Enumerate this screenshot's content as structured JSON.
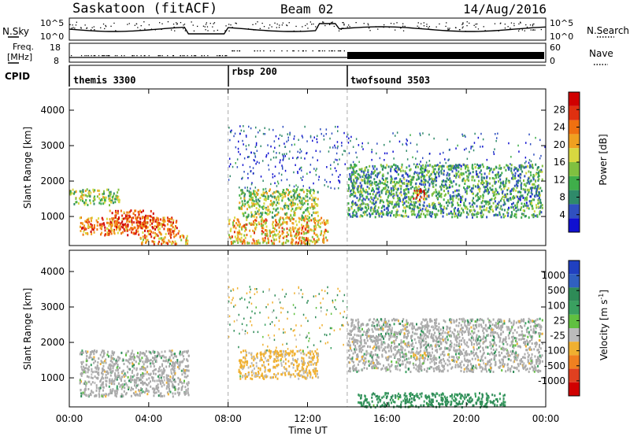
{
  "header": {
    "station": "Saskatoon (fitACF)",
    "beam": "Beam 02",
    "date": "14/Aug/2016"
  },
  "noise_panel": {
    "left_label": "N.Sky",
    "left_ticks": [
      "10^5",
      "10^0"
    ],
    "right_label": "N.Search",
    "right_ticks": [
      "10^5",
      "10^0"
    ]
  },
  "freq_panel": {
    "left_label_line1": "Freq.",
    "left_label_line2": "[MHz]",
    "left_ticks": [
      "18",
      "8"
    ],
    "right_label": "Nave",
    "right_ticks": [
      "60",
      "0"
    ]
  },
  "cpid_panel": {
    "label": "CPID",
    "programs": [
      {
        "name": "themis 3300",
        "start": 0
      },
      {
        "name": "rbsp 200",
        "start": 8
      },
      {
        "name": "twofsound 3503",
        "start": 14
      }
    ]
  },
  "power_panel": {
    "ylabel": "Slant Range [km]",
    "yticks": [
      "1000",
      "2000",
      "3000",
      "4000"
    ],
    "colorbar_label": "Power [dB]",
    "colorbar_ticks": [
      "4",
      "8",
      "12",
      "16",
      "20",
      "24",
      "28"
    ],
    "colors": [
      "#1010d0",
      "#3050c0",
      "#2f8a6a",
      "#3fae4a",
      "#80c040",
      "#d8d840",
      "#f0a020",
      "#f07010",
      "#e03010",
      "#d00000"
    ]
  },
  "velocity_panel": {
    "ylabel": "Slant Range [km]",
    "yticks": [
      "1000",
      "2000",
      "3000",
      "4000"
    ],
    "colorbar_label": "Velocity [m s-1]",
    "colorbar_label_main": "Velocity  [m s",
    "colorbar_label_sup": "-1",
    "colorbar_ticks": [
      "1000",
      "500",
      "100",
      "25",
      "-25",
      "-100",
      "-500",
      "-1000"
    ],
    "colors": [
      "#2040c0",
      "#3060c0",
      "#2e8b57",
      "#3aa060",
      "#60c040",
      "#bbbbbb",
      "#f0b030",
      "#f08020",
      "#e04020",
      "#d00000"
    ],
    "ground_scatter_color": "#aaaaaa"
  },
  "x_axis": {
    "label": "Time UT",
    "ticks": [
      "00:00",
      "04:00",
      "08:00",
      "12:00",
      "16:00",
      "20:00",
      "00:00"
    ]
  },
  "chart_data": {
    "type": "heatmap",
    "title": "Saskatoon (fitACF) Beam 02 14/Aug/2016",
    "xlabel": "Time UT",
    "ylabel": "Slant Range [km]",
    "x_range_hours": [
      0,
      24
    ],
    "y_range_km": [
      180,
      4600
    ],
    "grid": false,
    "panels": [
      {
        "name": "Power [dB]",
        "colorbar_ticks": [
          4,
          8,
          12,
          16,
          20,
          24,
          28
        ],
        "regions": [
          {
            "t": [
              0.0,
              2.5
            ],
            "r": [
              1350,
              1800
            ],
            "power": 14
          },
          {
            "t": [
              0.5,
              5.5
            ],
            "r": [
              500,
              1000
            ],
            "power": 24
          },
          {
            "t": [
              2.0,
              4.2
            ],
            "r": [
              700,
              1200
            ],
            "power": 26
          },
          {
            "t": [
              3.5,
              6.0
            ],
            "r": [
              250,
              500
            ],
            "power": 22
          },
          {
            "t": [
              8.0,
              13.0
            ],
            "r": [
              250,
              1000
            ],
            "power": 20
          },
          {
            "t": [
              8.5,
              12.5
            ],
            "r": [
              1000,
              1800
            ],
            "power": 14
          },
          {
            "t": [
              14.0,
              23.8
            ],
            "r": [
              1000,
              2500
            ],
            "power": 10
          },
          {
            "t": [
              17.3,
              18.0
            ],
            "r": [
              1500,
              1800
            ],
            "power": 24
          }
        ]
      },
      {
        "name": "Velocity [m s-1]",
        "colorbar_ticks": [
          1000,
          500,
          100,
          25,
          -25,
          -100,
          -500,
          -1000
        ],
        "regions": [
          {
            "t": [
              0.5,
              6.0
            ],
            "r": [
              500,
              1800
            ],
            "velocity": 0,
            "ground_scatter": true
          },
          {
            "t": [
              8.5,
              12.5
            ],
            "r": [
              1000,
              1800
            ],
            "velocity": -100
          },
          {
            "t": [
              14.0,
              23.8
            ],
            "r": [
              1200,
              2700
            ],
            "velocity": 0,
            "ground_scatter": true
          },
          {
            "t": [
              14.5,
              22.0
            ],
            "r": [
              200,
              600
            ],
            "velocity": 100
          },
          {
            "t": [
              17.3,
              18.0
            ],
            "r": [
              1550,
              1750
            ],
            "velocity": -100
          }
        ]
      }
    ],
    "program_boundaries_hours": [
      8,
      14
    ]
  }
}
